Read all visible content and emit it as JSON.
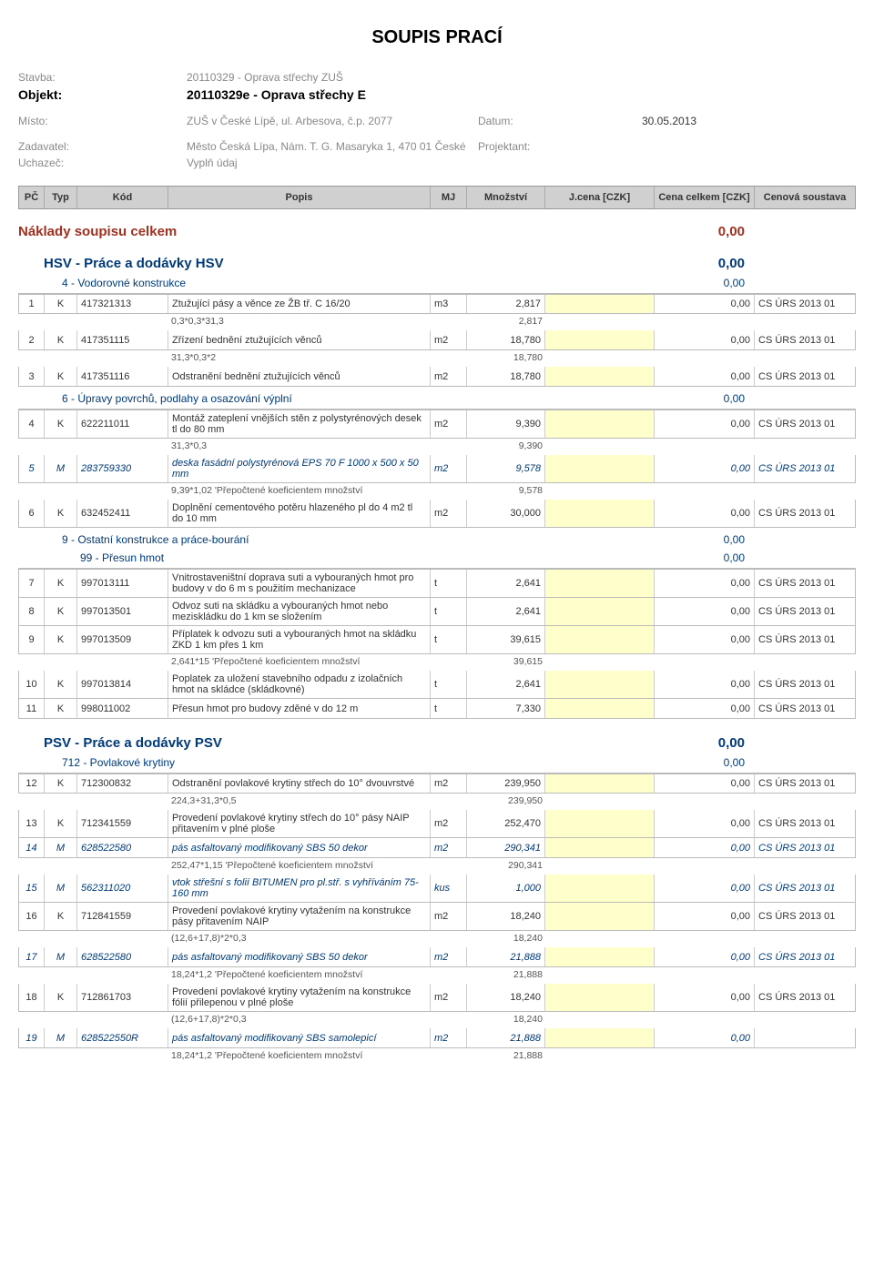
{
  "title": "SOUPIS PRACÍ",
  "header": {
    "stavba_label": "Stavba:",
    "stavba": "20110329 - Oprava střechy ZUŠ",
    "objekt_label": "Objekt:",
    "objekt": "20110329e - Oprava střechy E",
    "misto_label": "Místo:",
    "misto": "ZUŠ v České Lípě, ul. Arbesova, č.p. 2077",
    "datum_label": "Datum:",
    "datum": "30.05.2013",
    "zadavatel_label": "Zadavatel:",
    "zadavatel": "Město Česká Lípa, Nám. T. G. Masaryka 1, 470 01 České",
    "projektant_label": "Projektant:",
    "uchazec_label": "Uchazeč:",
    "uchazec": "Vyplň údaj"
  },
  "columns": {
    "pc": "PČ",
    "typ": "Typ",
    "kod": "Kód",
    "popis": "Popis",
    "mj": "MJ",
    "mn": "Množství",
    "jc": "J.cena [CZK]",
    "cc": "Cena celkem [CZK]",
    "cs": "Cenová soustava"
  },
  "total": {
    "label": "Náklady soupisu celkem",
    "value": "0,00"
  },
  "sections": [
    {
      "title": "HSV - Práce a dodávky HSV",
      "amount": "0,00",
      "subs": [
        {
          "title": "4 - Vodorovné konstrukce",
          "amount": "0,00",
          "items": [
            {
              "pc": "1",
              "typ": "K",
              "kod": "417321313",
              "popis": "Ztužující pásy a věnce ze ŽB tř. C 16/20",
              "mj": "m3",
              "mn": "2,817",
              "cc": "0,00",
              "cs": "CS ÚRS 2013 01",
              "calcs": [
                {
                  "f": "0,3*0,3*31,3",
                  "r": "2,817"
                }
              ]
            },
            {
              "pc": "2",
              "typ": "K",
              "kod": "417351115",
              "popis": "Zřízení bednění ztužujících věnců",
              "mj": "m2",
              "mn": "18,780",
              "cc": "0,00",
              "cs": "CS ÚRS 2013 01",
              "calcs": [
                {
                  "f": "31,3*0,3*2",
                  "r": "18,780"
                }
              ]
            },
            {
              "pc": "3",
              "typ": "K",
              "kod": "417351116",
              "popis": "Odstranění bednění ztužujících věnců",
              "mj": "m2",
              "mn": "18,780",
              "cc": "0,00",
              "cs": "CS ÚRS 2013 01"
            }
          ]
        },
        {
          "title": "6 - Úpravy povrchů, podlahy a osazování výplní",
          "amount": "0,00",
          "items": [
            {
              "pc": "4",
              "typ": "K",
              "kod": "622211011",
              "popis": "Montáž zateplení vnějších stěn z polystyrénových desek tl do 80 mm",
              "mj": "m2",
              "mn": "9,390",
              "cc": "0,00",
              "cs": "CS ÚRS 2013 01",
              "calcs": [
                {
                  "f": "31,3*0,3",
                  "r": "9,390"
                }
              ]
            },
            {
              "pc": "5",
              "typ": "M",
              "kod": "283759330",
              "popis": "deska fasádní polystyrénová EPS 70 F 1000 x 500 x 50 mm",
              "mj": "m2",
              "mn": "9,578",
              "cc": "0,00",
              "cs": "CS ÚRS 2013 01",
              "material": true,
              "calcs": [
                {
                  "f": "9,39*1,02 'Přepočtené koeficientem množství",
                  "r": "9,578"
                }
              ]
            },
            {
              "pc": "6",
              "typ": "K",
              "kod": "632452411",
              "popis": "Doplnění cementového potěru hlazeného pl do 4 m2 tl do 10 mm",
              "mj": "m2",
              "mn": "30,000",
              "cc": "0,00",
              "cs": "CS ÚRS 2013 01"
            }
          ]
        },
        {
          "title": "9 - Ostatní konstrukce a práce-bourání",
          "amount": "0,00",
          "sub2": {
            "title": "99 - Přesun hmot",
            "amount": "0,00"
          },
          "items": [
            {
              "pc": "7",
              "typ": "K",
              "kod": "997013111",
              "popis": "Vnitrostaveništní doprava suti a vybouraných hmot pro budovy v do 6 m s použitím mechanizace",
              "mj": "t",
              "mn": "2,641",
              "cc": "0,00",
              "cs": "CS ÚRS 2013 01"
            },
            {
              "pc": "8",
              "typ": "K",
              "kod": "997013501",
              "popis": "Odvoz suti na skládku a vybouraných hmot nebo meziskládku do 1 km se složením",
              "mj": "t",
              "mn": "2,641",
              "cc": "0,00",
              "cs": "CS ÚRS 2013 01"
            },
            {
              "pc": "9",
              "typ": "K",
              "kod": "997013509",
              "popis": "Příplatek k odvozu suti a vybouraných hmot na skládku ZKD 1 km přes 1 km",
              "mj": "t",
              "mn": "39,615",
              "cc": "0,00",
              "cs": "CS ÚRS 2013 01",
              "calcs": [
                {
                  "f": "2,641*15 'Přepočtené koeficientem množství",
                  "r": "39,615"
                }
              ]
            },
            {
              "pc": "10",
              "typ": "K",
              "kod": "997013814",
              "popis": "Poplatek za uložení stavebního odpadu z izolačních hmot na skládce (skládkovné)",
              "mj": "t",
              "mn": "2,641",
              "cc": "0,00",
              "cs": "CS ÚRS 2013 01"
            },
            {
              "pc": "11",
              "typ": "K",
              "kod": "998011002",
              "popis": "Přesun hmot pro budovy zděné v do 12 m",
              "mj": "t",
              "mn": "7,330",
              "cc": "0,00",
              "cs": "CS ÚRS 2013 01"
            }
          ]
        }
      ]
    },
    {
      "title": "PSV - Práce a dodávky PSV",
      "amount": "0,00",
      "subs": [
        {
          "title": "712 - Povlakové krytiny",
          "amount": "0,00",
          "items": [
            {
              "pc": "12",
              "typ": "K",
              "kod": "712300832",
              "popis": "Odstranění povlakové krytiny střech do 10° dvouvrstvé",
              "mj": "m2",
              "mn": "239,950",
              "cc": "0,00",
              "cs": "CS ÚRS 2013 01",
              "calcs": [
                {
                  "f": "224,3+31,3*0,5",
                  "r": "239,950"
                }
              ]
            },
            {
              "pc": "13",
              "typ": "K",
              "kod": "712341559",
              "popis": "Provedení povlakové krytiny střech do 10° pásy NAIP přitavením v plné ploše",
              "mj": "m2",
              "mn": "252,470",
              "cc": "0,00",
              "cs": "CS ÚRS 2013 01"
            },
            {
              "pc": "14",
              "typ": "M",
              "kod": "628522580",
              "popis": "pás asfaltovaný modifikovaný SBS  50  dekor",
              "mj": "m2",
              "mn": "290,341",
              "cc": "0,00",
              "cs": "CS ÚRS 2013 01",
              "material": true,
              "calcs": [
                {
                  "f": "252,47*1,15 'Přepočtené koeficientem množství",
                  "r": "290,341"
                }
              ]
            },
            {
              "pc": "15",
              "typ": "M",
              "kod": "562311020",
              "popis": "vtok střešní s folií BITUMEN pro pl.stř. s vyhříváním 75-160 mm",
              "mj": "kus",
              "mn": "1,000",
              "cc": "0,00",
              "cs": "CS ÚRS 2013 01",
              "material": true
            },
            {
              "pc": "16",
              "typ": "K",
              "kod": "712841559",
              "popis": "Provedení povlakové krytiny vytažením na konstrukce pásy přitavením NAIP",
              "mj": "m2",
              "mn": "18,240",
              "cc": "0,00",
              "cs": "CS ÚRS 2013 01",
              "calcs": [
                {
                  "f": "(12,6+17,8)*2*0,3",
                  "r": "18,240"
                }
              ]
            },
            {
              "pc": "17",
              "typ": "M",
              "kod": "628522580",
              "popis": "pás asfaltovaný modifikovaný SBS  50  dekor",
              "mj": "m2",
              "mn": "21,888",
              "cc": "0,00",
              "cs": "CS ÚRS 2013 01",
              "material": true,
              "calcs": [
                {
                  "f": "18,24*1,2 'Přepočtené koeficientem množství",
                  "r": "21,888"
                }
              ]
            },
            {
              "pc": "18",
              "typ": "K",
              "kod": "712861703",
              "popis": "Provedení povlakové krytiny vytažením na konstrukce fólií přilepenou v plné ploše",
              "mj": "m2",
              "mn": "18,240",
              "cc": "0,00",
              "cs": "CS ÚRS 2013 01",
              "calcs": [
                {
                  "f": "(12,6+17,8)*2*0,3",
                  "r": "18,240"
                }
              ]
            },
            {
              "pc": "19",
              "typ": "M",
              "kod": "628522550R",
              "popis": "pás asfaltovaný modifikovaný SBS samolepicí",
              "mj": "m2",
              "mn": "21,888",
              "cc": "0,00",
              "cs": "",
              "material": true,
              "calcs": [
                {
                  "f": "18,24*1,2 'Přepočtené koeficientem množství",
                  "r": "21,888"
                }
              ]
            }
          ]
        }
      ]
    }
  ]
}
